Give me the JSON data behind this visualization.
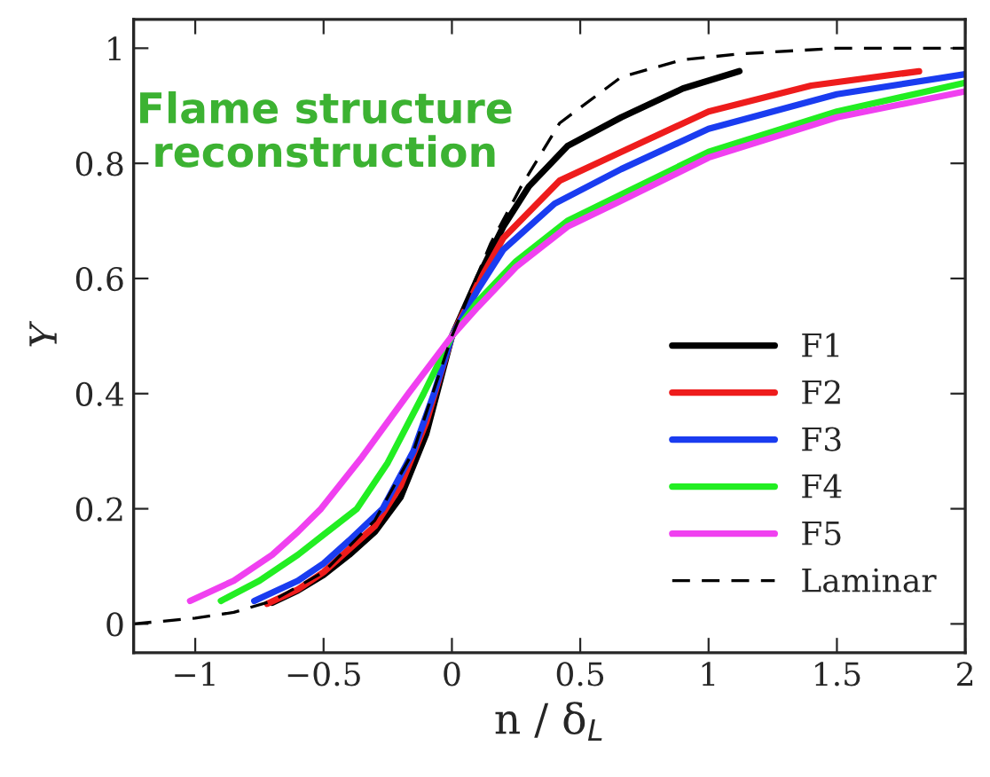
{
  "chart_data": {
    "type": "line",
    "xlabel": "n / δ$_{L}$",
    "ylabel": "Y",
    "annotations": [
      "Flame structure\nreconstruction"
    ],
    "xlim": [
      -1.24,
      2
    ],
    "ylim": [
      -0.05,
      1.05
    ],
    "xticks": [
      {
        "value": -1,
        "label": "−1"
      },
      {
        "value": -0.5,
        "label": "−0.5"
      },
      0,
      0.5,
      1,
      1.5,
      2
    ],
    "yticks": [
      0,
      0.2,
      0.4,
      0.6,
      0.8,
      1
    ],
    "grid": false,
    "legend": "lower right",
    "series": [
      {
        "name": "F1",
        "color": "#000000",
        "line_style": "solid",
        "x": [
          -0.7,
          -0.6,
          -0.5,
          -0.4,
          -0.3,
          -0.2,
          -0.1,
          0,
          0.1,
          0.2,
          0.3,
          0.45,
          0.66,
          0.9,
          1.12
        ],
        "values": [
          0.037,
          0.058,
          0.085,
          0.12,
          0.16,
          0.22,
          0.33,
          0.5,
          0.6,
          0.69,
          0.76,
          0.83,
          0.88,
          0.93,
          0.96
        ]
      },
      {
        "name": "F2",
        "color": "#ee1c1c",
        "line_style": "solid",
        "x": [
          -0.72,
          -0.6,
          -0.5,
          -0.4,
          -0.3,
          -0.2,
          -0.1,
          0,
          0.1,
          0.2,
          0.42,
          0.66,
          1.0,
          1.4,
          1.82
        ],
        "values": [
          0.035,
          0.06,
          0.09,
          0.13,
          0.17,
          0.24,
          0.35,
          0.5,
          0.59,
          0.67,
          0.77,
          0.82,
          0.89,
          0.935,
          0.96
        ]
      },
      {
        "name": "F3",
        "color": "#1a3cf0",
        "line_style": "solid",
        "x": [
          -0.77,
          -0.6,
          -0.5,
          -0.4,
          -0.27,
          -0.15,
          -0.07,
          0,
          0.1,
          0.2,
          0.4,
          0.66,
          1.0,
          1.5,
          2.0
        ],
        "values": [
          0.04,
          0.075,
          0.105,
          0.145,
          0.2,
          0.3,
          0.4,
          0.5,
          0.58,
          0.65,
          0.73,
          0.79,
          0.86,
          0.92,
          0.955
        ]
      },
      {
        "name": "F4",
        "color": "#22ee22",
        "line_style": "solid",
        "x": [
          -0.9,
          -0.75,
          -0.6,
          -0.5,
          -0.37,
          -0.25,
          -0.11,
          0,
          0.1,
          0.25,
          0.45,
          0.66,
          1.0,
          1.5,
          2.0
        ],
        "values": [
          0.04,
          0.075,
          0.12,
          0.155,
          0.2,
          0.28,
          0.4,
          0.5,
          0.56,
          0.63,
          0.7,
          0.746,
          0.82,
          0.89,
          0.94
        ]
      },
      {
        "name": "F5",
        "color": "#f040f0",
        "line_style": "solid",
        "x": [
          -1.02,
          -0.85,
          -0.7,
          -0.6,
          -0.51,
          -0.35,
          -0.17,
          0,
          0.1,
          0.25,
          0.45,
          0.66,
          1.0,
          1.5,
          2.0
        ],
        "values": [
          0.04,
          0.075,
          0.12,
          0.16,
          0.2,
          0.29,
          0.4,
          0.5,
          0.55,
          0.62,
          0.69,
          0.735,
          0.81,
          0.88,
          0.925
        ]
      },
      {
        "name": "Laminar",
        "color": "#000000",
        "line_style": "dashed",
        "x": [
          -1.24,
          -1.0,
          -0.85,
          -0.7,
          -0.5,
          -0.3,
          -0.15,
          0,
          0.15,
          0.27,
          0.42,
          0.66,
          0.9,
          1.12,
          1.5,
          2.0
        ],
        "values": [
          0.0,
          0.01,
          0.02,
          0.04,
          0.09,
          0.18,
          0.3,
          0.5,
          0.66,
          0.76,
          0.87,
          0.95,
          0.98,
          0.99,
          1.0,
          1.0
        ]
      }
    ]
  }
}
